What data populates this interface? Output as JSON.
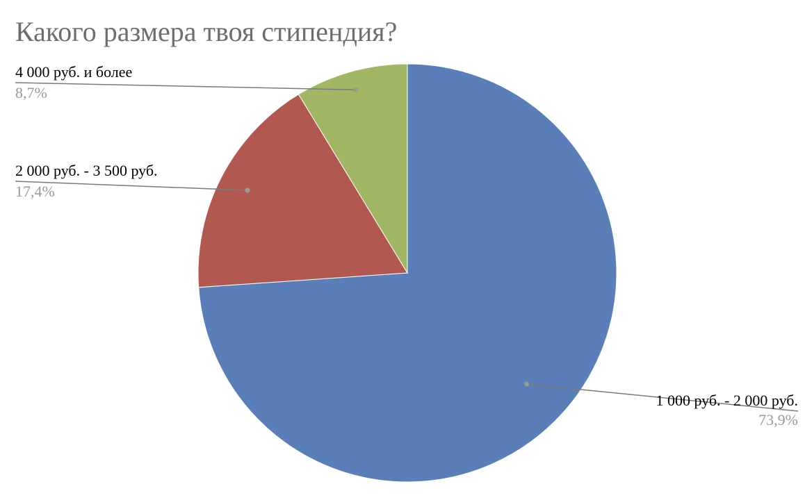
{
  "chart_data": {
    "type": "pie",
    "title": "Какого размера твоя стипендия?",
    "categories": [
      "1 000 руб. - 2 000 руб.",
      "2 000 руб. - 3 500 руб.",
      "4 000 руб. и более"
    ],
    "values": [
      73.9,
      17.4,
      8.7
    ],
    "value_labels": [
      "73,9%",
      "17,4%",
      "8,7%"
    ],
    "colors": [
      "#5a7fb8",
      "#b15951",
      "#a2b764"
    ],
    "start_angle_deg": 0,
    "direction": "clockwise",
    "legend": "none"
  }
}
